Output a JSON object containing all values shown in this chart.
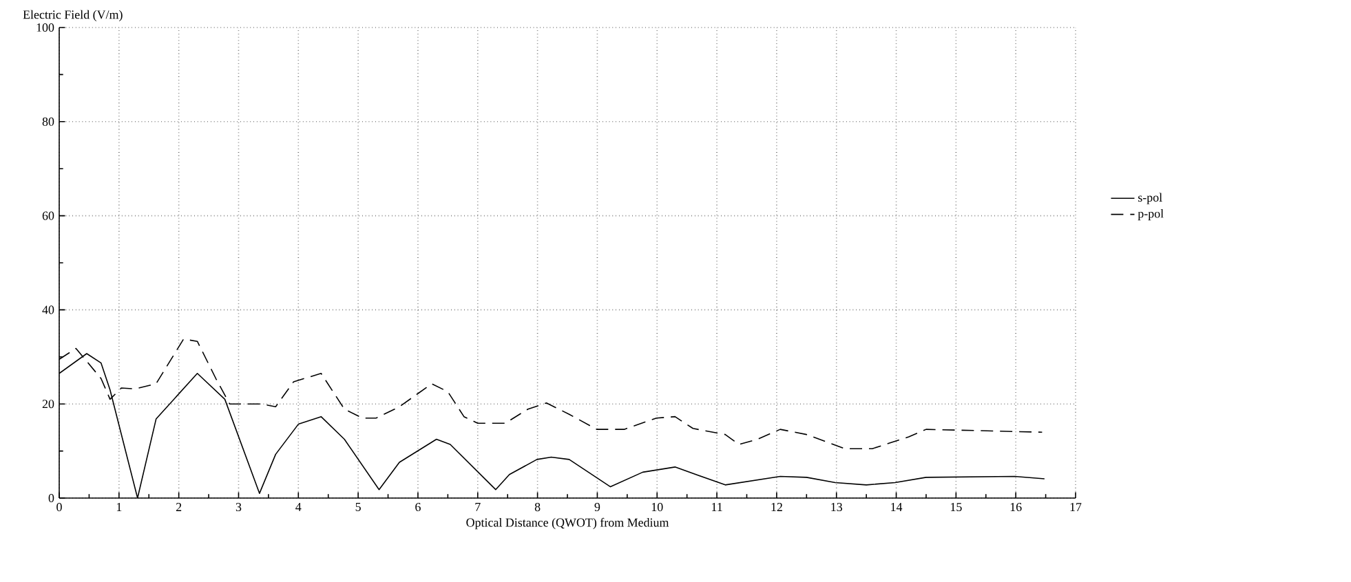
{
  "chart_data": {
    "type": "line",
    "xlabel": "Optical Distance (QWOT) from Medium",
    "ylabel": "Electric Field (V/m)",
    "xlim": [
      0,
      17
    ],
    "ylim": [
      0,
      100
    ],
    "xticks": [
      0,
      1,
      2,
      3,
      4,
      5,
      6,
      7,
      8,
      9,
      10,
      11,
      12,
      13,
      14,
      15,
      16,
      17
    ],
    "yticks": [
      0,
      20,
      40,
      60,
      80,
      100
    ],
    "grid": true,
    "legend": "right",
    "marker": "none",
    "series": [
      {
        "name": "s-pol",
        "color": "#000000",
        "line_style": "solid",
        "x": [
          0,
          0.46,
          0.7,
          0.85,
          1.31,
          1.62,
          2.31,
          2.77,
          3.35,
          3.62,
          4.0,
          4.38,
          4.77,
          5.35,
          5.69,
          6.31,
          6.54,
          7.3,
          7.53,
          7.99,
          8.23,
          8.53,
          9.22,
          9.76,
          10.3,
          11.14,
          12.06,
          12.5,
          12.98,
          13.5,
          13.98,
          14.5,
          15.98,
          16.48
        ],
        "values": [
          26.5,
          30.7,
          28.7,
          23,
          0,
          16.8,
          26.5,
          21,
          1,
          9.3,
          15.7,
          17.3,
          12.5,
          1.8,
          7.6,
          12.5,
          11.4,
          1.8,
          5,
          8.2,
          8.7,
          8.2,
          2.4,
          5.5,
          6.6,
          2.8,
          4.6,
          4.4,
          3.3,
          2.8,
          3.3,
          4.4,
          4.6,
          4.1
        ]
      },
      {
        "name": "p-pol",
        "color": "#000000",
        "line_style": "dashed",
        "x": [
          0,
          0.28,
          0.7,
          0.85,
          1.04,
          1.27,
          1.62,
          2.08,
          2.31,
          2.62,
          2.85,
          3.38,
          3.62,
          3.92,
          4.38,
          4.77,
          5.07,
          5.3,
          5.69,
          6.23,
          6.5,
          6.77,
          7.0,
          7.46,
          7.84,
          8.15,
          8.53,
          8.99,
          9.45,
          9.99,
          10.3,
          10.6,
          11.14,
          11.37,
          11.68,
          12.06,
          12.5,
          13.14,
          13.6,
          14.21,
          14.5,
          16.44
        ],
        "values": [
          29.5,
          31.8,
          25.4,
          21,
          23.4,
          23.2,
          24.3,
          33.8,
          33.3,
          25.4,
          20,
          20,
          19.4,
          24.7,
          26.5,
          18.9,
          17,
          17,
          19.4,
          24.3,
          22.6,
          17.3,
          15.9,
          15.9,
          18.9,
          20.2,
          17.8,
          14.6,
          14.6,
          17,
          17.3,
          14.8,
          13.5,
          11.4,
          12.5,
          14.6,
          13.5,
          10.5,
          10.5,
          13,
          14.6,
          14.0
        ]
      }
    ]
  }
}
